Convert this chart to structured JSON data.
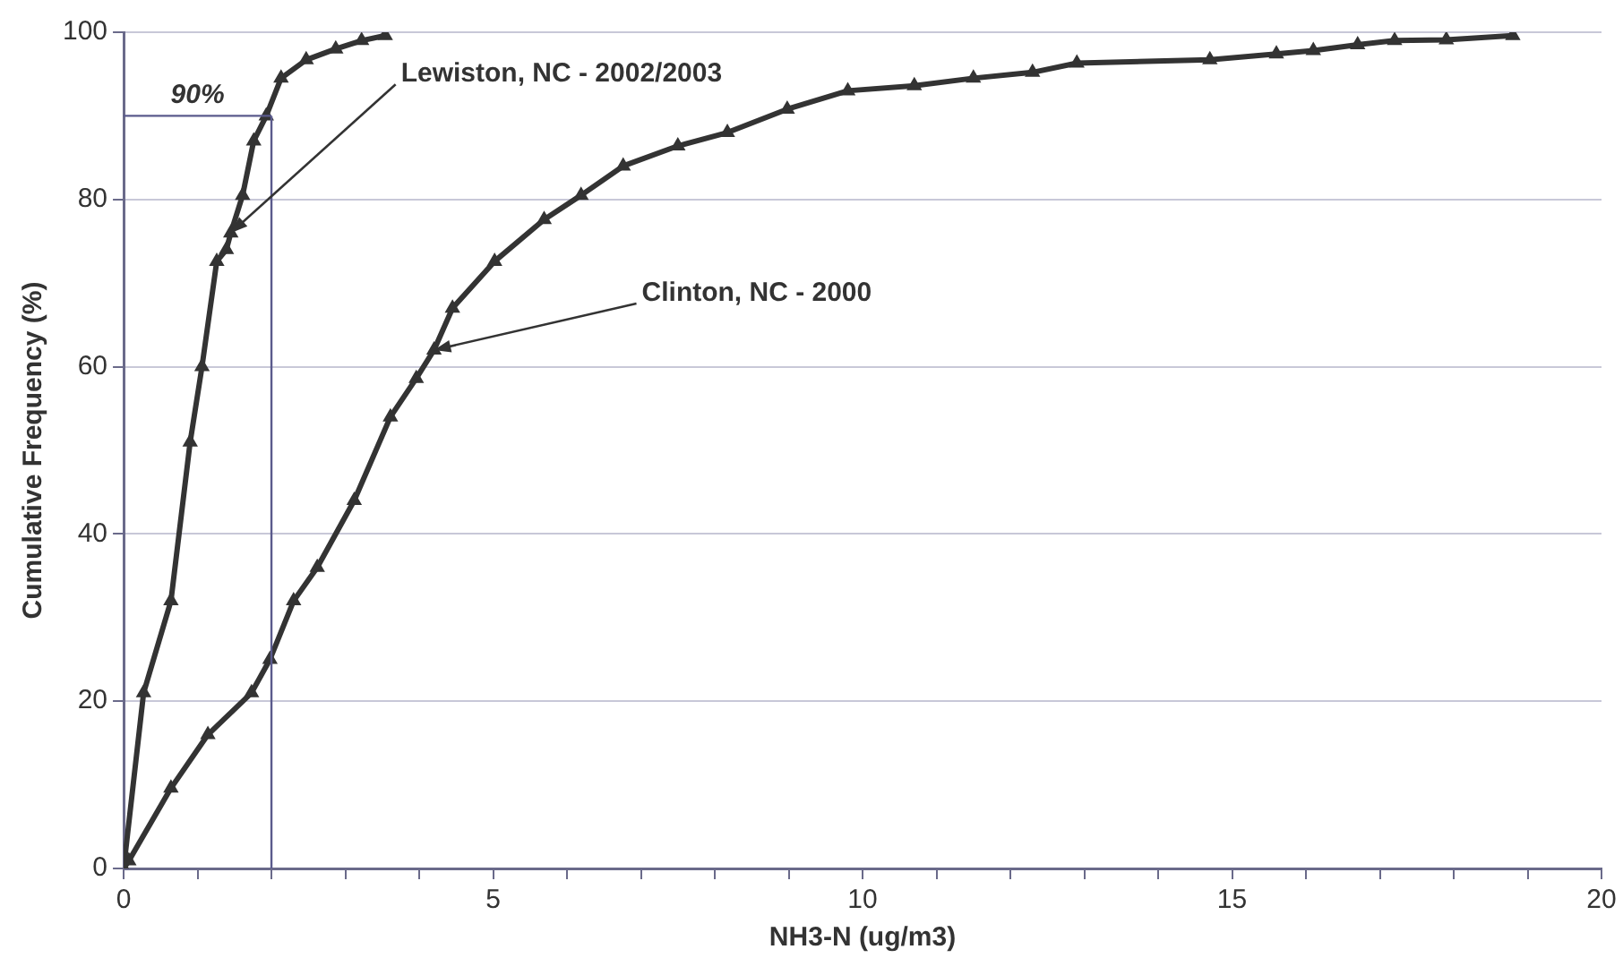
{
  "chart_data": {
    "type": "line",
    "xlabel": "NH3-N (ug/m3)",
    "ylabel": "Cumulative Frequency (%)",
    "xlim": [
      0,
      20
    ],
    "ylim": [
      0,
      100
    ],
    "xticks": [
      0,
      {
        "value": 1,
        "label": null
      },
      {
        "value": 2,
        "label": null
      },
      {
        "value": 3,
        "label": null
      },
      {
        "value": 4,
        "label": null
      },
      5,
      {
        "value": 6,
        "label": null
      },
      {
        "value": 7,
        "label": null
      },
      {
        "value": 8,
        "label": null
      },
      {
        "value": 9,
        "label": null
      },
      10,
      {
        "value": 11,
        "label": null
      },
      {
        "value": 12,
        "label": null
      },
      {
        "value": 13,
        "label": null
      },
      {
        "value": 14,
        "label": null
      },
      15,
      {
        "value": 16,
        "label": null
      },
      {
        "value": 17,
        "label": null
      },
      {
        "value": 18,
        "label": null
      },
      {
        "value": 19,
        "label": null
      },
      20
    ],
    "yticks": [
      0,
      20,
      40,
      60,
      80,
      100
    ],
    "grid": "y",
    "legend": false,
    "marker": "triangle",
    "line_style": "solid",
    "series": [
      {
        "color": "#333333",
        "x": [
          0,
          0.27,
          0.64,
          0.9,
          1.06,
          1.26,
          1.39,
          1.45,
          1.61,
          1.76,
          1.93,
          2.13,
          2.47,
          2.87,
          3.22,
          3.54
        ],
        "values": [
          0,
          21,
          32,
          51,
          60,
          72.6,
          74,
          76,
          80.5,
          87,
          90,
          94.5,
          96.7,
          98,
          99,
          99.6
        ]
      },
      {
        "color": "#333333",
        "x": [
          0,
          0.07,
          0.64,
          1.14,
          1.73,
          1.98,
          2.3,
          2.62,
          3.12,
          3.61,
          3.96,
          4.2,
          4.45,
          5.02,
          5.69,
          6.19,
          6.76,
          7.5,
          8.17,
          8.98,
          9.8,
          10.7,
          11.5,
          12.3,
          12.9,
          14.7,
          15.6,
          16.1,
          16.7,
          17.2,
          17.9,
          18.8
        ],
        "values": [
          0,
          0.9,
          9.6,
          16,
          21,
          25,
          32,
          36,
          44,
          54,
          58.6,
          62,
          67,
          72.6,
          77.6,
          80.5,
          84,
          86.4,
          88,
          90.8,
          93,
          93.6,
          94.5,
          95.2,
          96.3,
          96.7,
          97.4,
          97.8,
          98.5,
          99,
          99.1,
          99.6
        ]
      }
    ],
    "ref_lines": [
      {
        "axis": "x",
        "value": 2,
        "color": "#5a5a8c"
      },
      {
        "axis": "y",
        "value": 90,
        "label": "90%",
        "color": "#5a5a8c"
      }
    ],
    "annotations": [
      {
        "text": "Lewiston, NC - 2002/2003",
        "x": 1.45,
        "y": 76
      },
      {
        "text": "Clinton, NC - 2000",
        "x": 4.2,
        "y": 62
      }
    ]
  }
}
